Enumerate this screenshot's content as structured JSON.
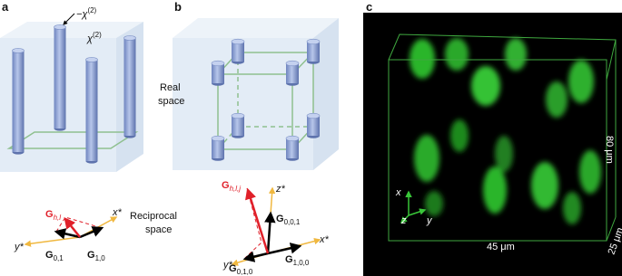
{
  "panel_labels": [
    "a",
    "b",
    "c"
  ],
  "real_space": [
    "Real",
    "space"
  ],
  "reciprocal_space": [
    "Reciprocal",
    "space"
  ],
  "panel_a": {
    "chi_minus": {
      "text": "−χ",
      "sup": "(2)"
    },
    "chi": {
      "text": "χ",
      "sup": "(2)"
    },
    "vectors": [
      {
        "text": "G",
        "sub": "h,l"
      },
      {
        "text": "G",
        "sub": "0,1"
      },
      {
        "text": "G",
        "sub": "1,0"
      }
    ],
    "axes": [
      "x*",
      "y*"
    ]
  },
  "panel_b": {
    "vectors": [
      {
        "text": "G",
        "sub": "h,l,j"
      },
      {
        "text": "G",
        "sub": "0,0,1"
      },
      {
        "text": "G",
        "sub": "0,1,0"
      },
      {
        "text": "G",
        "sub": "1,0,0"
      }
    ],
    "axes": [
      "z*",
      "x*",
      "y*"
    ]
  },
  "panel_c": {
    "axes": [
      "x",
      "z",
      "y"
    ],
    "scale": [
      "45 μm",
      "25 μm",
      "80 μm"
    ]
  }
}
